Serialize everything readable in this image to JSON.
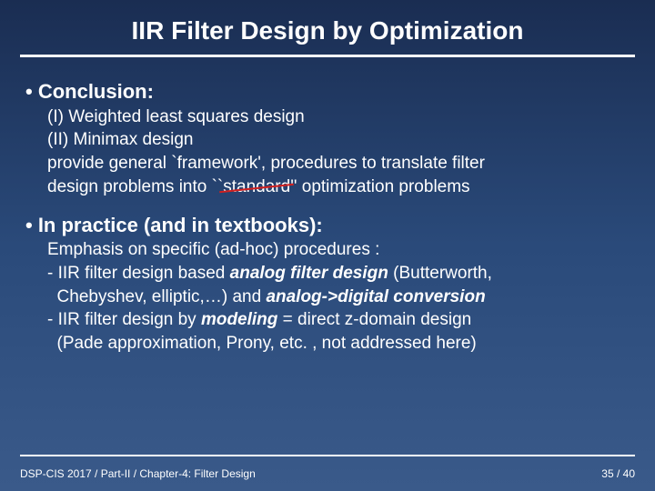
{
  "title": "IIR Filter Design by Optimization",
  "section1": {
    "head": "• Conclusion:",
    "l1": "(I) Weighted least squares design",
    "l2": "(II) Minimax design",
    "l3a": "provide general `framework', procedures to translate filter",
    "l3b_pre": "design problems into ``",
    "l3b_strike": "standard",
    "l3b_post": "'' optimization problems"
  },
  "section2": {
    "head": "• In practice (and in textbooks):",
    "l1": "Emphasis on specific (ad-hoc) procedures :",
    "l2a": "- IIR filter design based ",
    "l2b": "analog filter design",
    "l2c": " (Butterworth,",
    "l3a": "  Chebyshev, elliptic,…) and ",
    "l3b": "analog->digital conversion",
    "l4a": "- IIR filter design by ",
    "l4b": "modeling",
    "l4c": " = direct  z-domain design",
    "l5": "  (Pade approximation, Prony, etc. , not addressed here)"
  },
  "footer": {
    "left": "DSP-CIS 2017 / Part-II / Chapter-4: Filter Design",
    "right": "35 / 40"
  },
  "colors": {
    "bg_top": "#1a2d52",
    "bg_bot": "#3a5a8a",
    "text": "#ffffff",
    "strike": "#d02020"
  }
}
